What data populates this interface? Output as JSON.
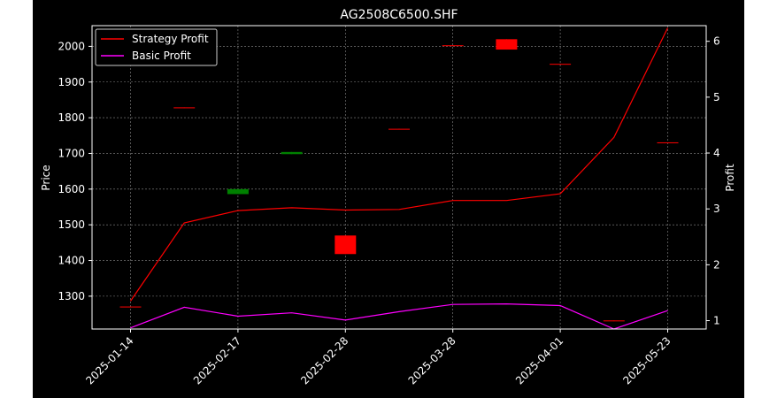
{
  "chart_data": {
    "type": "line",
    "title": "AG2508C6500.SHF",
    "xlabel": "",
    "ylabel": "Price",
    "ylabel_right": "Profit",
    "x_ticks": [
      "2025-01-14",
      "2025-02-17",
      "2025-02-28",
      "2025-03-28",
      "2025-04-01",
      "2025-05-23"
    ],
    "y_ticks_left": [
      "1300",
      "1400",
      "1500",
      "1600",
      "1700",
      "1800",
      "1900",
      "2000"
    ],
    "y_ticks_right": [
      "1",
      "2",
      "3",
      "4",
      "5",
      "6"
    ],
    "ylim_left": [
      1208,
      2058
    ],
    "ylim_right": [
      0.85,
      6.28
    ],
    "grid": true,
    "legend_position": "upper-left",
    "colors": {
      "background": "#000000",
      "text": "#ffffff",
      "grid": "#8c8c8c",
      "up": "#008000",
      "down": "#ff0000",
      "strategy": "#ff0000",
      "basic": "#ff00ff"
    },
    "candles": [
      {
        "x": 0,
        "open": 1271,
        "close": 1269,
        "high": 1271,
        "low": 1269
      },
      {
        "x": 1,
        "open": 1829,
        "close": 1827,
        "high": 1829,
        "low": 1827
      },
      {
        "x": 2,
        "open": 1586,
        "close": 1600,
        "high": 1600,
        "low": 1586
      },
      {
        "x": 3,
        "open": 1698,
        "close": 1704,
        "high": 1704,
        "low": 1698
      },
      {
        "x": 4,
        "open": 1470,
        "close": 1418,
        "high": 1470,
        "low": 1418
      },
      {
        "x": 5,
        "open": 1769,
        "close": 1767,
        "high": 1769,
        "low": 1767
      },
      {
        "x": 6,
        "open": 2003,
        "close": 2001,
        "high": 2003,
        "low": 2001
      },
      {
        "x": 7,
        "open": 2020,
        "close": 1991,
        "high": 2020,
        "low": 1991
      },
      {
        "x": 8,
        "open": 1951,
        "close": 1949,
        "high": 1951,
        "low": 1949
      },
      {
        "x": 9,
        "open": 1232,
        "close": 1230,
        "high": 1232,
        "low": 1230
      },
      {
        "x": 10,
        "open": 1731,
        "close": 1729,
        "high": 1731,
        "low": 1729
      }
    ],
    "series": [
      {
        "name": "Strategy Profit",
        "axis": "right",
        "values": [
          1.35,
          2.75,
          2.97,
          3.02,
          2.98,
          2.99,
          3.15,
          3.15,
          3.27,
          4.28,
          6.24
        ]
      },
      {
        "name": "Basic Profit",
        "axis": "right",
        "values": [
          0.87,
          1.24,
          1.08,
          1.14,
          1.01,
          1.16,
          1.29,
          1.3,
          1.27,
          0.85,
          1.18
        ]
      }
    ]
  }
}
